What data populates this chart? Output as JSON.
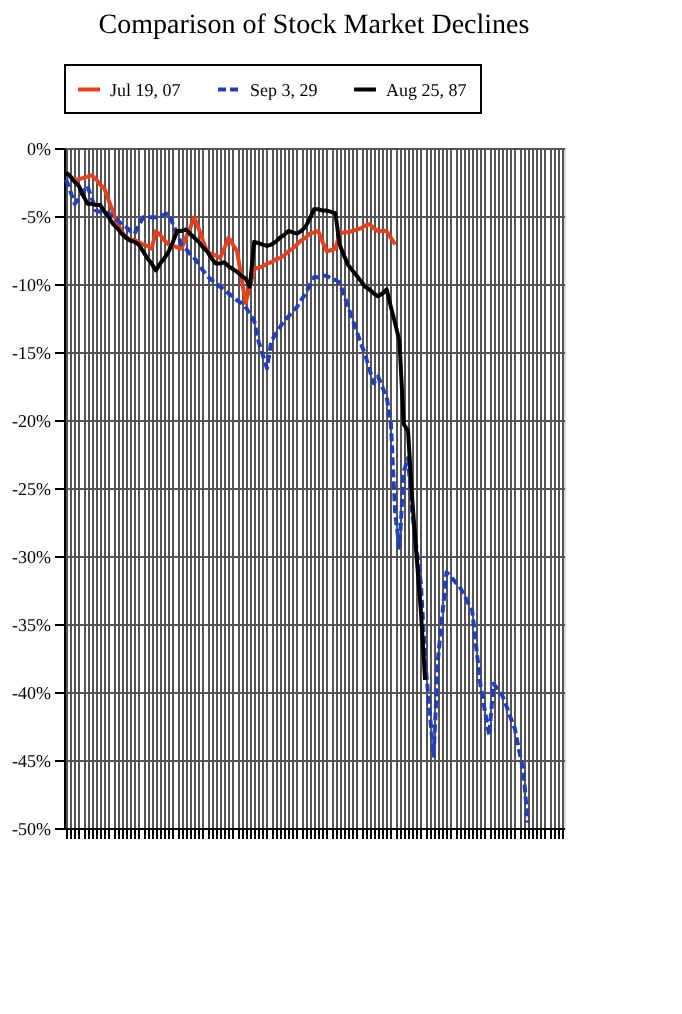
{
  "chart_data": {
    "type": "line",
    "title": "Comparison of Stock Market Declines",
    "legend": "top",
    "grid": true,
    "tick_labels": "y",
    "marker": "none",
    "categories": [
      null,
      null,
      null,
      null,
      null,
      null,
      null,
      null,
      null,
      null,
      null,
      null,
      null,
      null,
      null,
      null,
      null,
      null,
      null,
      null,
      null,
      null,
      null,
      null,
      null,
      null,
      null,
      null,
      null,
      null,
      null,
      null,
      null,
      null,
      null,
      null,
      null,
      null,
      null,
      null,
      null,
      null,
      null,
      null,
      null,
      null,
      null,
      null,
      null,
      null,
      null,
      null,
      null,
      null,
      null,
      null,
      null,
      null,
      null,
      null,
      null,
      null,
      null,
      null,
      null,
      null,
      null,
      null,
      null,
      null,
      null,
      null,
      null,
      null,
      null,
      null,
      null,
      null,
      null,
      null,
      null,
      null,
      null,
      null,
      null,
      null,
      null,
      null,
      null,
      null,
      null,
      null,
      null,
      null,
      null,
      null,
      null,
      null,
      null,
      null,
      null,
      null,
      null,
      null,
      null,
      null,
      null,
      null,
      null,
      null,
      null,
      null,
      null,
      null,
      null,
      null,
      null
    ],
    "ylim": [
      -50,
      0
    ],
    "yticks": [
      {
        "value": 0,
        "label": "0%"
      },
      {
        "value": -5,
        "label": "-5%"
      },
      {
        "value": -10,
        "label": "-10%"
      },
      {
        "value": -15,
        "label": "-15%"
      },
      {
        "value": -20,
        "label": "-20%"
      },
      {
        "value": -25,
        "label": "-25%"
      },
      {
        "value": -30,
        "label": "-30%"
      },
      {
        "value": -35,
        "label": "-35%"
      },
      {
        "value": -40,
        "label": "-40%"
      },
      {
        "value": -45,
        "label": "-45%"
      },
      {
        "value": -50,
        "label": "-50%"
      }
    ],
    "series": [
      {
        "name": "Jul 19, 07",
        "color": "#e8401c",
        "line_style": "solid",
        "values": [
          -1.8,
          -2.1,
          -2.4,
          -2.3,
          -2.2,
          -2.1,
          -2.0,
          -2.3,
          -2.7,
          -3.0,
          -3.9,
          -4.7,
          -5.6,
          -6.1,
          -6.6,
          -6.7,
          -6.8,
          -6.9,
          -7.1,
          -7.2,
          -7.4,
          -6.1,
          -6.4,
          -6.8,
          -7.1,
          -7.2,
          -7.3,
          -7.4,
          -6.6,
          -5.9,
          -5.1,
          -5.9,
          -6.8,
          -7.6,
          -7.8,
          -7.9,
          -8.1,
          -7.4,
          -6.6,
          -7.1,
          -7.6,
          -9.5,
          -11.4,
          -10.2,
          -8.9,
          -8.8,
          -8.7,
          -8.5,
          -8.4,
          -8.2,
          -8.1,
          -7.9,
          -7.6,
          -7.4,
          -7.1,
          -6.8,
          -6.6,
          -6.3,
          -6.2,
          -6.1,
          -6.9,
          -7.6,
          -7.5,
          -7.4,
          -6.3,
          -6.2,
          -6.2,
          -6.1,
          -6.0,
          -5.9,
          -5.7,
          -5.6,
          -5.9,
          -6.1,
          -6.1,
          -6.1,
          -6.6,
          -7.1,
          null,
          null,
          null,
          null,
          null,
          null,
          null,
          null,
          null,
          null,
          null,
          null,
          null,
          null,
          null,
          null,
          null,
          null,
          null,
          null,
          null,
          null,
          null,
          null,
          null,
          null,
          null,
          null,
          null,
          null,
          null,
          null,
          null,
          null,
          null,
          null,
          null,
          null,
          null
        ]
      },
      {
        "name": "Sep 3, 29",
        "color": "#1f3fbf",
        "line_style": "dashed",
        "values": [
          -2.3,
          -3.2,
          -4.1,
          -3.7,
          -3.2,
          -2.8,
          -3.7,
          -4.6,
          -4.7,
          -4.7,
          -4.8,
          -5.1,
          -5.3,
          -5.6,
          -5.8,
          -6.1,
          -6.3,
          -5.7,
          -5.1,
          -5.1,
          -5.1,
          -5.1,
          -5.0,
          -4.9,
          -4.8,
          -5.6,
          -6.3,
          -7.1,
          -7.4,
          -7.8,
          -8.1,
          -8.5,
          -9.0,
          -9.4,
          -9.7,
          -9.9,
          -10.2,
          -10.4,
          -10.7,
          -10.9,
          -11.2,
          -11.4,
          -11.7,
          -12.2,
          -12.7,
          -14.2,
          -15.2,
          -16.2,
          -14.2,
          -13.7,
          -13.2,
          -12.7,
          -12.4,
          -12.0,
          -11.7,
          -11.2,
          -10.7,
          -10.1,
          -9.5,
          -9.5,
          -9.4,
          -9.4,
          -9.6,
          -9.7,
          -9.9,
          -10.8,
          -11.7,
          -12.6,
          -13.5,
          -14.4,
          -15.2,
          -16.3,
          -17.3,
          -16.8,
          -17.6,
          -18.3,
          -20.3,
          -26.9,
          -29.4,
          -23.8,
          -22.8,
          -26.9,
          -29.5,
          -32.0,
          -37.6,
          -41.2,
          -44.7,
          -37.6,
          -34.4,
          -31.2,
          -31.5,
          -31.9,
          -32.2,
          -32.8,
          -33.4,
          -34.0,
          -36.8,
          -39.6,
          -41.4,
          -43.2,
          -39.4,
          -39.8,
          -40.2,
          -41.0,
          -41.9,
          -42.7,
          -44.3,
          -45.8,
          -49.6,
          null,
          null,
          null,
          null,
          null,
          null,
          null,
          null
        ]
      },
      {
        "name": "Aug 25, 87",
        "color": "#000000",
        "line_style": "solid",
        "values": [
          -1.8,
          -2.1,
          -2.5,
          -2.8,
          -3.5,
          -4.1,
          -4.1,
          -4.2,
          -4.2,
          -4.7,
          -5.1,
          -5.6,
          -5.9,
          -6.3,
          -6.6,
          -6.8,
          -6.9,
          -7.1,
          -7.6,
          -8.1,
          -8.5,
          -9.0,
          -8.5,
          -8.1,
          -7.6,
          -6.9,
          -6.1,
          -6.1,
          -6.0,
          -6.3,
          -6.6,
          -6.9,
          -7.3,
          -7.6,
          -8.1,
          -8.5,
          -8.5,
          -8.4,
          -8.7,
          -8.9,
          -9.1,
          -9.4,
          -9.6,
          -10.2,
          -6.9,
          -7.0,
          -7.1,
          -7.2,
          -7.1,
          -6.9,
          -6.6,
          -6.4,
          -6.1,
          -6.2,
          -6.3,
          -6.1,
          -5.8,
          -5.2,
          -4.5,
          -4.5,
          -4.6,
          -4.6,
          -4.7,
          -4.8,
          -7.1,
          -7.9,
          -8.6,
          -9.0,
          -9.4,
          -9.8,
          -10.2,
          -10.4,
          -10.7,
          -10.9,
          -10.7,
          -10.4,
          -11.7,
          -12.9,
          -14.2,
          -20.3,
          -20.8,
          -25.9,
          -30.0,
          -34.0,
          -39.1,
          null,
          null,
          null,
          null,
          null,
          null,
          null,
          null,
          null,
          null,
          null,
          null,
          null,
          null,
          null,
          null,
          null,
          null,
          null,
          null,
          null,
          null,
          null,
          null,
          null,
          null,
          null,
          null,
          null,
          null,
          null,
          null
        ]
      }
    ]
  }
}
